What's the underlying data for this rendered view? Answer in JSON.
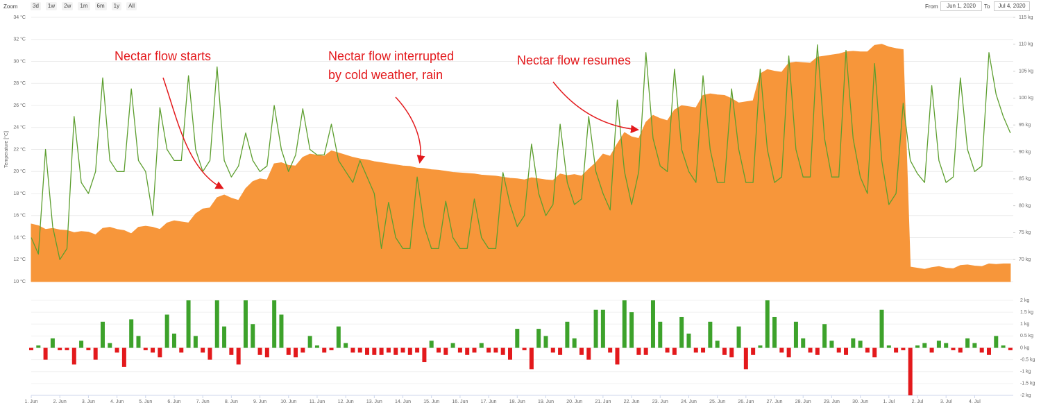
{
  "toolbar": {
    "zoom_label": "Zoom",
    "buttons": [
      "3d",
      "1w",
      "2w",
      "1m",
      "6m",
      "1y",
      "All"
    ],
    "from_label": "From",
    "from": "Jun 1, 2020",
    "to_label": "To",
    "to": "Jul 4, 2020"
  },
  "chart_data": [
    {
      "type": "combo",
      "y_title": "Temperature [°C]",
      "x": [
        0,
        0.25,
        0.5,
        0.75,
        1,
        1.25,
        1.5,
        1.75,
        2,
        2.25,
        2.5,
        2.75,
        3,
        3.25,
        3.5,
        3.75,
        4,
        4.25,
        4.5,
        4.75,
        5,
        5.25,
        5.5,
        5.75,
        6,
        6.25,
        6.5,
        6.75,
        7,
        7.25,
        7.5,
        7.75,
        8,
        8.25,
        8.5,
        8.75,
        9,
        9.25,
        9.5,
        9.75,
        10,
        10.25,
        10.5,
        10.75,
        11,
        11.25,
        11.5,
        11.75,
        12,
        12.25,
        12.5,
        12.75,
        13,
        13.25,
        13.5,
        13.75,
        14,
        14.25,
        14.5,
        14.75,
        15,
        15.25,
        15.5,
        15.75,
        16,
        16.25,
        16.5,
        16.75,
        17,
        17.25,
        17.5,
        17.75,
        18,
        18.25,
        18.5,
        18.75,
        19,
        19.25,
        19.5,
        19.75,
        20,
        20.25,
        20.5,
        20.75,
        21,
        21.25,
        21.5,
        21.75,
        22,
        22.25,
        22.5,
        22.75,
        23,
        23.25,
        23.5,
        23.75,
        24,
        24.25,
        24.5,
        24.75,
        25,
        25.25,
        25.5,
        25.75,
        26,
        26.25,
        26.5,
        26.75,
        27,
        27.25,
        27.5,
        27.75,
        28,
        28.25,
        28.5,
        28.75,
        29,
        29.25,
        29.5,
        29.75,
        30,
        30.25,
        30.5,
        30.75,
        31,
        31.25,
        31.5,
        31.75,
        32,
        32.25,
        32.5,
        32.75,
        33,
        33.25,
        33.5,
        33.75,
        34,
        34.25
      ],
      "xlim": [
        0,
        34.35
      ],
      "ylim": [
        10,
        34
      ],
      "yticks": [
        {
          "value": 10,
          "label": "10 °C"
        },
        {
          "value": 12,
          "label": "12 °C"
        },
        {
          "value": 14,
          "label": "14 °C"
        },
        {
          "value": 16,
          "label": "16 °C"
        },
        {
          "value": 18,
          "label": "18 °C"
        },
        {
          "value": 20,
          "label": "20 °C"
        },
        {
          "value": 22,
          "label": "22 °C"
        },
        {
          "value": 24,
          "label": "24 °C"
        },
        {
          "value": 26,
          "label": "26 °C"
        },
        {
          "value": 28,
          "label": "28 °C"
        },
        {
          "value": 30,
          "label": "30 °C"
        },
        {
          "value": 32,
          "label": "32 °C"
        },
        {
          "value": 34,
          "label": "34 °C"
        }
      ],
      "y2lim": [
        65.9,
        115
      ],
      "y2ticks": [
        {
          "value": 70,
          "label": "70 kg"
        },
        {
          "value": 75,
          "label": "75 kg"
        },
        {
          "value": 80,
          "label": "80 kg"
        },
        {
          "value": 85,
          "label": "85 kg"
        },
        {
          "value": 90,
          "label": "90 kg"
        },
        {
          "value": 95,
          "label": "95 kg"
        },
        {
          "value": 100,
          "label": "100 kg"
        },
        {
          "value": 105,
          "label": "105 kg"
        },
        {
          "value": 110,
          "label": "110 kg"
        },
        {
          "value": 115,
          "label": "115 kg"
        }
      ],
      "grid": true,
      "series": [
        {
          "type": "area",
          "axis": "y2",
          "color": "#f7963a",
          "values": [
            76.6,
            76.3,
            75.6,
            75.8,
            75.5,
            75.4,
            75.0,
            75.2,
            75.1,
            74.6,
            75.8,
            76.0,
            75.6,
            75.4,
            74.8,
            76.0,
            76.2,
            76.0,
            75.6,
            76.8,
            77.2,
            77.0,
            76.8,
            78.5,
            79.4,
            79.6,
            81.5,
            82.0,
            81.4,
            81.0,
            83.2,
            84.5,
            85.0,
            84.8,
            87.8,
            88.0,
            87.5,
            87.4,
            89.0,
            89.6,
            89.4,
            89.2,
            90.2,
            89.8,
            89.4,
            89.0,
            88.7,
            88.5,
            88.2,
            88.0,
            87.8,
            87.6,
            87.4,
            87.3,
            87.0,
            86.9,
            86.7,
            86.6,
            86.4,
            86.2,
            86.1,
            86.0,
            85.9,
            85.7,
            85.6,
            85.5,
            85.3,
            85.1,
            85.0,
            84.8,
            85.2,
            85.0,
            84.8,
            84.7,
            85.9,
            85.6,
            85.8,
            85.5,
            86.8,
            88.0,
            89.6,
            89.2,
            91.5,
            93.6,
            92.8,
            92.5,
            95.5,
            96.8,
            96.2,
            95.8,
            97.8,
            98.6,
            98.4,
            98.2,
            100.5,
            100.8,
            100.6,
            100.5,
            99.9,
            99.1,
            99.3,
            99.5,
            104.5,
            105.3,
            105.0,
            104.8,
            106.5,
            106.7,
            106.6,
            106.5,
            107.6,
            107.8,
            108.0,
            108.2,
            108.6,
            108.7,
            108.6,
            108.6,
            109.8,
            110.0,
            109.5,
            109.2,
            109.0,
            68.6,
            68.4,
            68.2,
            68.5,
            68.7,
            68.4,
            68.3,
            68.9,
            69.0,
            68.8,
            68.7,
            69.2,
            69.1,
            69.2,
            69.2
          ]
        },
        {
          "type": "line",
          "axis": "y",
          "color": "#5c9e2e",
          "values": [
            14,
            12.5,
            22,
            15,
            12,
            13,
            25,
            19,
            18,
            20,
            28.5,
            21,
            20,
            20,
            27.5,
            21,
            20,
            16,
            25.8,
            22,
            21,
            21,
            28.7,
            22,
            20,
            21,
            29.5,
            21,
            19.5,
            20.5,
            23.5,
            21,
            20,
            20.5,
            26,
            22,
            20,
            21.5,
            25.7,
            22,
            21.5,
            21.5,
            24.3,
            21,
            20,
            19,
            21,
            19.5,
            18,
            13,
            17.2,
            14,
            13,
            13,
            19.5,
            15,
            13,
            13,
            17.3,
            14,
            13,
            13,
            17.5,
            14,
            13,
            13,
            19.9,
            17,
            15,
            16,
            22.5,
            18,
            16,
            17,
            24.3,
            19,
            17,
            17.5,
            25,
            20,
            18,
            16.5,
            26.5,
            20,
            17,
            20,
            30.8,
            23,
            20.5,
            20,
            29.3,
            22,
            20,
            19,
            28.7,
            22,
            19,
            19,
            27.5,
            22,
            19,
            19,
            29.3,
            22,
            19,
            19.5,
            30.5,
            22,
            19.5,
            19.5,
            31.5,
            23,
            19.5,
            19.5,
            31,
            23,
            19.5,
            18,
            29.8,
            21,
            17,
            18,
            26.2,
            21,
            19.8,
            19,
            27.8,
            21,
            19,
            19.5,
            28.5,
            22,
            20,
            20.5,
            30.8,
            27,
            25,
            23.5
          ]
        }
      ],
      "annotations": [
        [
          "Nectar flow starts"
        ],
        [
          "Nectar flow interrupted",
          "by cold weather, rain"
        ],
        [
          "Nectar flow resumes"
        ]
      ]
    },
    {
      "type": "bar",
      "x": [
        0,
        0.25,
        0.5,
        0.75,
        1,
        1.25,
        1.5,
        1.75,
        2,
        2.25,
        2.5,
        2.75,
        3,
        3.25,
        3.5,
        3.75,
        4,
        4.25,
        4.5,
        4.75,
        5,
        5.25,
        5.5,
        5.75,
        6,
        6.25,
        6.5,
        6.75,
        7,
        7.25,
        7.5,
        7.75,
        8,
        8.25,
        8.5,
        8.75,
        9,
        9.25,
        9.5,
        9.75,
        10,
        10.25,
        10.5,
        10.75,
        11,
        11.25,
        11.5,
        11.75,
        12,
        12.25,
        12.5,
        12.75,
        13,
        13.25,
        13.5,
        13.75,
        14,
        14.25,
        14.5,
        14.75,
        15,
        15.25,
        15.5,
        15.75,
        16,
        16.25,
        16.5,
        16.75,
        17,
        17.25,
        17.5,
        17.75,
        18,
        18.25,
        18.5,
        18.75,
        19,
        19.25,
        19.5,
        19.75,
        20,
        20.25,
        20.5,
        20.75,
        21,
        21.25,
        21.5,
        21.75,
        22,
        22.25,
        22.5,
        22.75,
        23,
        23.25,
        23.5,
        23.75,
        24,
        24.25,
        24.5,
        24.75,
        25,
        25.25,
        25.5,
        25.75,
        26,
        26.25,
        26.5,
        26.75,
        27,
        27.25,
        27.5,
        27.75,
        28,
        28.25,
        28.5,
        28.75,
        29,
        29.25,
        29.5,
        29.75,
        30,
        30.25,
        30.5,
        30.75,
        31,
        31.25,
        31.5,
        31.75,
        32,
        32.25,
        32.5,
        32.75,
        33,
        33.25,
        33.5,
        33.75,
        34,
        34.25
      ],
      "xlim": [
        0,
        34.35
      ],
      "xticks": [
        {
          "value": 0,
          "label": "1. Jun"
        },
        {
          "value": 1,
          "label": "2. Jun"
        },
        {
          "value": 2,
          "label": "3. Jun"
        },
        {
          "value": 3,
          "label": "4. Jun"
        },
        {
          "value": 4,
          "label": "5. Jun"
        },
        {
          "value": 5,
          "label": "6. Jun"
        },
        {
          "value": 6,
          "label": "7. Jun"
        },
        {
          "value": 7,
          "label": "8. Jun"
        },
        {
          "value": 8,
          "label": "9. Jun"
        },
        {
          "value": 9,
          "label": "10. Jun"
        },
        {
          "value": 10,
          "label": "11. Jun"
        },
        {
          "value": 11,
          "label": "12. Jun"
        },
        {
          "value": 12,
          "label": "13. Jun"
        },
        {
          "value": 13,
          "label": "14. Jun"
        },
        {
          "value": 14,
          "label": "15. Jun"
        },
        {
          "value": 15,
          "label": "16. Jun"
        },
        {
          "value": 16,
          "label": "17. Jun"
        },
        {
          "value": 17,
          "label": "18. Jun"
        },
        {
          "value": 18,
          "label": "19. Jun"
        },
        {
          "value": 19,
          "label": "20. Jun"
        },
        {
          "value": 20,
          "label": "21. Jun"
        },
        {
          "value": 21,
          "label": "22. Jun"
        },
        {
          "value": 22,
          "label": "23. Jun"
        },
        {
          "value": 23,
          "label": "24. Jun"
        },
        {
          "value": 24,
          "label": "25. Jun"
        },
        {
          "value": 25,
          "label": "26. Jun"
        },
        {
          "value": 26,
          "label": "27. Jun"
        },
        {
          "value": 27,
          "label": "28. Jun"
        },
        {
          "value": 28,
          "label": "29. Jun"
        },
        {
          "value": 29,
          "label": "30. Jun"
        },
        {
          "value": 30,
          "label": "1. Jul"
        },
        {
          "value": 31,
          "label": "2. Jul"
        },
        {
          "value": 32,
          "label": "3. Jul"
        },
        {
          "value": 33,
          "label": "4. Jul"
        }
      ],
      "ylim": [
        -2,
        2
      ],
      "yticks": [
        {
          "value": -2,
          "label": "-2 kg"
        },
        {
          "value": -1.5,
          "label": "-1.5 kg"
        },
        {
          "value": -1,
          "label": "-1 kg"
        },
        {
          "value": -0.5,
          "label": "-0.5 kg"
        },
        {
          "value": 0,
          "label": "0 kg"
        },
        {
          "value": 0.5,
          "label": "0.5 kg"
        },
        {
          "value": 1,
          "label": "1 kg"
        },
        {
          "value": 1.5,
          "label": "1.5 kg"
        },
        {
          "value": 2,
          "label": "2 kg"
        }
      ],
      "grid": true,
      "color": "#3da22b",
      "negative_color": "#e3191c",
      "values": [
        -0.1,
        0.1,
        -0.5,
        0.4,
        -0.1,
        -0.1,
        -0.7,
        0.3,
        -0.1,
        -0.5,
        1.1,
        0.2,
        -0.2,
        -0.8,
        1.2,
        0.5,
        -0.1,
        -0.2,
        -0.4,
        1.4,
        0.6,
        -0.2,
        2.0,
        0.5,
        -0.2,
        -0.5,
        2.0,
        0.9,
        -0.3,
        -0.7,
        2.0,
        1.0,
        -0.3,
        -0.4,
        2.0,
        1.4,
        -0.3,
        -0.4,
        -0.2,
        0.5,
        0.1,
        -0.2,
        -0.1,
        0.9,
        0.2,
        -0.2,
        -0.2,
        -0.3,
        -0.3,
        -0.3,
        -0.2,
        -0.3,
        -0.2,
        -0.3,
        -0.2,
        -0.6,
        0.3,
        -0.2,
        -0.3,
        0.2,
        -0.2,
        -0.3,
        -0.2,
        0.2,
        -0.2,
        -0.2,
        -0.3,
        -0.5,
        0.8,
        -0.1,
        -0.9,
        0.8,
        0.5,
        -0.2,
        -0.3,
        1.1,
        0.4,
        -0.3,
        -0.5,
        1.6,
        1.6,
        -0.2,
        -0.7,
        2.0,
        1.5,
        -0.3,
        -0.3,
        2.0,
        1.1,
        -0.2,
        -0.3,
        1.3,
        0.6,
        -0.2,
        -0.2,
        1.1,
        0.3,
        -0.3,
        -0.4,
        0.9,
        -0.9,
        -0.3,
        0.1,
        2.0,
        1.3,
        -0.2,
        -0.4,
        1.1,
        0.4,
        -0.2,
        -0.3,
        1.0,
        0.3,
        -0.2,
        -0.3,
        0.4,
        0.3,
        -0.2,
        -0.4,
        1.6,
        0.1,
        -0.2,
        -0.1,
        -2.0,
        0.1,
        0.2,
        -0.2,
        0.3,
        0.2,
        -0.1,
        -0.2,
        0.4,
        0.2,
        -0.2,
        -0.3,
        0.5,
        0.1,
        -0.1
      ]
    }
  ]
}
